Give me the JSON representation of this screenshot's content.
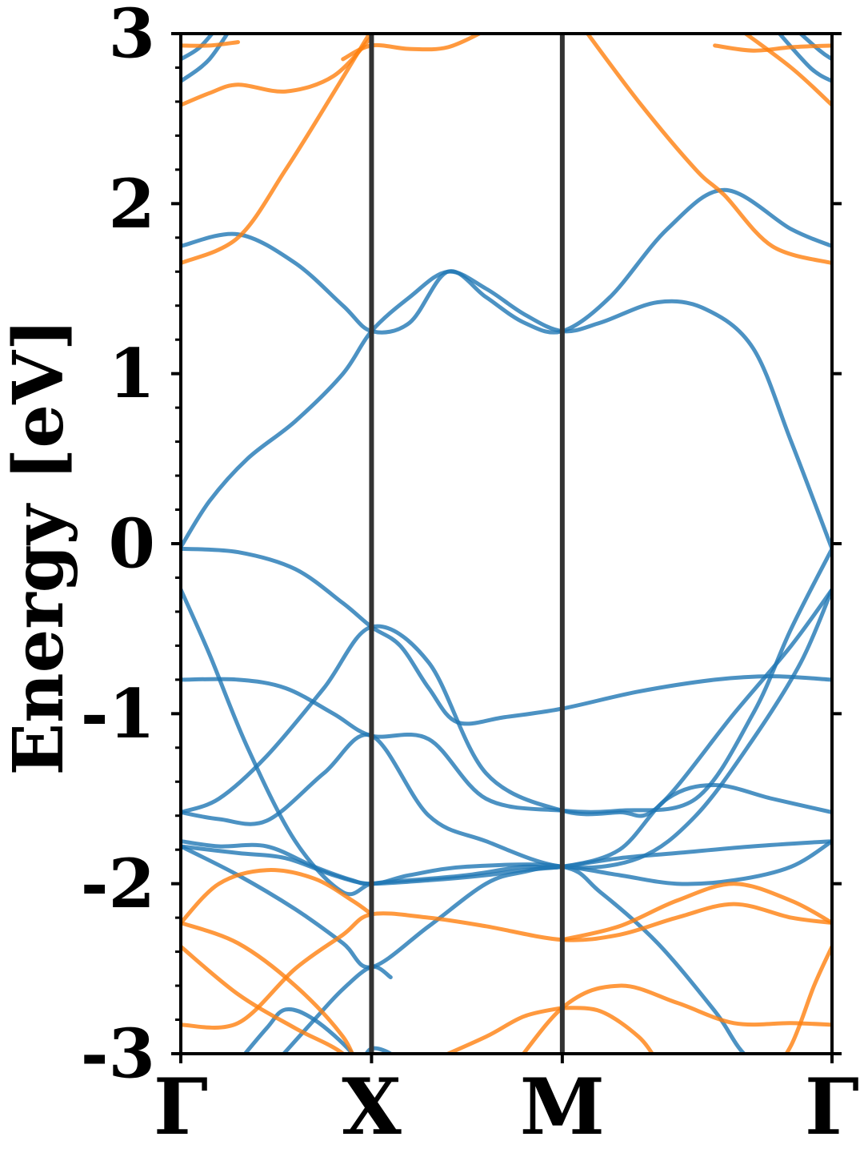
{
  "chart_data": {
    "type": "line",
    "ylabel": "Energy [eV]",
    "xlabel": "",
    "ylim": [
      -3,
      3
    ],
    "grid": false,
    "legend": "none",
    "kpath": [
      "Γ",
      "X",
      "M",
      "Γ"
    ],
    "kpath_positions": [
      0,
      1,
      2,
      3.414
    ],
    "xlim": [
      0,
      3.414
    ],
    "y_ticks": [
      -3,
      -2,
      -1,
      0,
      1,
      2,
      3
    ],
    "y_tick_labels": [
      "-3",
      "-2",
      "-1",
      "0",
      "1",
      "2",
      "3"
    ],
    "minor_y_step": 0.2,
    "colors": {
      "blue_bands": "#1f77b4",
      "orange_bands": "#ff7f0e",
      "high_symmetry_line": "#333333",
      "axes": "#000000"
    },
    "series": [
      {
        "color_key": "blue_bands",
        "x": [
          0,
          0.15,
          0.35,
          0.6,
          0.85,
          1.0,
          1.2,
          1.4,
          1.6,
          1.8,
          2.0,
          2.2,
          2.5,
          2.75,
          3.0,
          3.2,
          3.414
        ],
        "y": [
          -0.02,
          0.25,
          0.5,
          0.72,
          1.0,
          1.25,
          1.45,
          1.6,
          1.5,
          1.35,
          1.25,
          1.3,
          1.42,
          1.38,
          1.15,
          0.6,
          -0.03
        ]
      },
      {
        "color_key": "blue_bands",
        "x": [
          0,
          0.3,
          0.6,
          0.85,
          1.0,
          1.2,
          1.4,
          1.6,
          1.8,
          2.0,
          2.25,
          2.55,
          2.85,
          3.2,
          3.414
        ],
        "y": [
          1.75,
          1.82,
          1.65,
          1.4,
          1.25,
          1.3,
          1.6,
          1.45,
          1.3,
          1.25,
          1.45,
          1.85,
          2.08,
          1.85,
          1.75
        ]
      },
      {
        "color_key": "blue_bands",
        "x": [
          0,
          0.3,
          0.6,
          0.85,
          1.0,
          1.15,
          1.3,
          1.45,
          1.7,
          2.0,
          2.4,
          2.8,
          3.1,
          3.414
        ],
        "y": [
          -0.03,
          -0.05,
          -0.15,
          -0.35,
          -0.49,
          -0.6,
          -0.85,
          -1.05,
          -1.02,
          -0.97,
          -0.87,
          -0.8,
          -0.78,
          -0.8
        ]
      },
      {
        "color_key": "blue_bands",
        "x": [
          0,
          0.3,
          0.55,
          0.8,
          1.0,
          1.3,
          1.6,
          2.0,
          2.3,
          2.7,
          3.0,
          3.2,
          3.414
        ],
        "y": [
          -0.8,
          -0.8,
          -0.85,
          -1.0,
          -1.13,
          -1.15,
          -1.5,
          -1.57,
          -1.57,
          -1.5,
          -1.0,
          -0.5,
          -0.03
        ]
      },
      {
        "color_key": "blue_bands",
        "x": [
          0,
          0.2,
          0.45,
          0.75,
          1.0,
          1.3,
          1.6,
          2.0,
          2.3,
          2.5,
          2.9,
          3.2,
          3.414
        ],
        "y": [
          -1.58,
          -1.5,
          -1.25,
          -0.85,
          -0.49,
          -0.7,
          -1.35,
          -1.57,
          -1.58,
          -1.55,
          -1.0,
          -0.6,
          -0.27
        ]
      },
      {
        "color_key": "blue_bands",
        "x": [
          0,
          0.2,
          0.45,
          0.75,
          1.0,
          1.3,
          1.6,
          2.0,
          2.4,
          2.7,
          3.0,
          3.25,
          3.414
        ],
        "y": [
          -1.58,
          -1.62,
          -1.63,
          -1.35,
          -1.13,
          -1.6,
          -1.75,
          -1.9,
          -1.85,
          -1.6,
          -1.15,
          -0.7,
          -0.27
        ]
      },
      {
        "color_key": "blue_bands",
        "x": [
          0,
          0.15,
          0.35,
          0.6,
          0.85,
          1.0,
          1.2,
          1.5,
          1.8,
          2.0,
          2.3,
          2.55,
          2.8,
          3.1,
          3.414
        ],
        "y": [
          -0.27,
          -0.65,
          -1.2,
          -1.75,
          -2.05,
          -2.0,
          -1.98,
          -1.95,
          -1.9,
          -1.9,
          -1.8,
          -1.5,
          -1.42,
          -1.5,
          -1.58
        ]
      },
      {
        "color_key": "blue_bands",
        "x": [
          0,
          0.2,
          0.45,
          0.7,
          0.9,
          1.0,
          1.3,
          1.6,
          1.8,
          2.0,
          2.3,
          2.6,
          3.0,
          3.414
        ],
        "y": [
          -1.75,
          -1.78,
          -1.78,
          -1.9,
          -1.98,
          -2.0,
          -1.98,
          -1.95,
          -1.92,
          -1.9,
          -1.85,
          -1.82,
          -1.78,
          -1.75
        ]
      },
      {
        "color_key": "blue_bands",
        "x": [
          0,
          0.3,
          0.6,
          0.85,
          1.0,
          1.3,
          1.6,
          1.8,
          2.0,
          2.3,
          2.6,
          2.9,
          3.2,
          3.414
        ],
        "y": [
          -1.78,
          -1.95,
          -2.15,
          -2.35,
          -2.49,
          -2.25,
          -2.0,
          -1.93,
          -1.9,
          -1.95,
          -2.0,
          -1.98,
          -1.9,
          -1.75
        ]
      },
      {
        "color_key": "blue_bands",
        "x": [
          0,
          0.3,
          0.55,
          0.8,
          1.0,
          1.2,
          1.5,
          2.0,
          2.2,
          2.5,
          2.8,
          3.0,
          3.414
        ],
        "y": [
          -1.78,
          -1.82,
          -1.85,
          -1.95,
          -2.0,
          -1.95,
          -1.9,
          -1.9,
          -2.05,
          -2.35,
          -2.75,
          -3.05,
          -3.3
        ]
      },
      {
        "color_key": "blue_bands",
        "x": [
          0.3,
          0.45,
          0.55,
          0.7,
          0.9,
          1.0,
          1.15
        ],
        "y": [
          -3.05,
          -2.85,
          -2.74,
          -2.8,
          -3.0,
          -3.2,
          -3.3
        ]
      },
      {
        "color_key": "blue_bands",
        "x": [
          0.5,
          0.7,
          0.85,
          1.0,
          1.1
        ],
        "y": [
          -3.05,
          -2.8,
          -2.62,
          -2.49,
          -2.55
        ]
      },
      {
        "color_key": "blue_bands",
        "x": [
          0.95,
          1.0,
          1.1,
          1.2
        ],
        "y": [
          -3.05,
          -2.97,
          -3.0,
          -3.1
        ]
      },
      {
        "color_key": "blue_bands",
        "x": [
          0,
          0.15,
          0.3
        ],
        "y": [
          2.72,
          2.85,
          3.1
        ]
      },
      {
        "color_key": "blue_bands",
        "x": [
          0,
          0.1,
          0.2
        ],
        "y": [
          2.85,
          2.92,
          3.05
        ]
      },
      {
        "color_key": "blue_bands",
        "x": [
          3.1,
          3.3,
          3.414
        ],
        "y": [
          3.05,
          2.8,
          2.72
        ]
      },
      {
        "color_key": "blue_bands",
        "x": [
          3.2,
          3.35,
          3.414
        ],
        "y": [
          3.05,
          2.9,
          2.85
        ]
      },
      {
        "color_key": "orange_bands",
        "x": [
          0,
          0.3,
          0.55,
          0.8,
          1.0
        ],
        "y": [
          1.65,
          1.8,
          2.2,
          2.65,
          3.02
        ]
      },
      {
        "color_key": "orange_bands",
        "x": [
          0,
          0.15,
          0.3,
          0.55,
          0.8,
          1.0
        ],
        "y": [
          2.58,
          2.65,
          2.7,
          2.66,
          2.75,
          2.98
        ]
      },
      {
        "color_key": "orange_bands",
        "x": [
          0.85,
          1.0,
          1.2,
          1.4,
          1.6
        ],
        "y": [
          2.85,
          2.93,
          2.91,
          2.92,
          3.02
        ]
      },
      {
        "color_key": "orange_bands",
        "x": [
          0,
          0.15,
          0.3
        ],
        "y": [
          2.93,
          2.93,
          2.95
        ]
      },
      {
        "color_key": "orange_bands",
        "x": [
          2.1,
          2.4,
          2.7,
          2.85,
          3.1,
          3.414
        ],
        "y": [
          3.05,
          2.6,
          2.2,
          2.05,
          1.75,
          1.65
        ]
      },
      {
        "color_key": "orange_bands",
        "x": [
          2.8,
          3.0,
          3.2,
          3.414
        ],
        "y": [
          2.93,
          2.9,
          2.92,
          2.93
        ]
      },
      {
        "color_key": "orange_bands",
        "x": [
          2.9,
          3.2,
          3.414
        ],
        "y": [
          3.05,
          2.8,
          2.58
        ]
      },
      {
        "color_key": "orange_bands",
        "x": [
          0,
          0.2,
          0.45,
          0.7,
          0.9,
          1.0
        ],
        "y": [
          -2.23,
          -2.0,
          -1.92,
          -1.97,
          -2.1,
          -2.18
        ]
      },
      {
        "color_key": "orange_bands",
        "x": [
          0,
          0.3,
          0.6,
          0.85,
          1.0,
          1.3,
          1.6,
          2.0,
          2.3,
          2.6,
          2.9,
          3.2,
          3.414
        ],
        "y": [
          -2.23,
          -2.35,
          -2.6,
          -2.9,
          -3.2,
          -3.3,
          -3.25,
          -2.73,
          -2.6,
          -2.7,
          -2.82,
          -2.82,
          -2.83
        ]
      },
      {
        "color_key": "orange_bands",
        "x": [
          0,
          0.3,
          0.6,
          0.85,
          1.0,
          1.3,
          1.6,
          2.0,
          2.3,
          2.6,
          2.9,
          3.2,
          3.414
        ],
        "y": [
          -2.83,
          -2.82,
          -2.5,
          -2.3,
          -2.18,
          -2.2,
          -2.25,
          -2.33,
          -2.3,
          -2.2,
          -2.12,
          -2.2,
          -2.23
        ]
      },
      {
        "color_key": "orange_bands",
        "x": [
          0,
          0.3,
          0.6,
          0.85,
          1.0
        ],
        "y": [
          -2.37,
          -2.65,
          -2.85,
          -3.0,
          -3.2
        ]
      },
      {
        "color_key": "orange_bands",
        "x": [
          1.3,
          1.6,
          1.8,
          2.0
        ],
        "y": [
          -3.05,
          -2.9,
          -2.78,
          -2.73
        ]
      },
      {
        "color_key": "orange_bands",
        "x": [
          2.0,
          2.2,
          2.4,
          2.5
        ],
        "y": [
          -2.73,
          -2.75,
          -2.9,
          -3.05
        ]
      },
      {
        "color_key": "orange_bands",
        "x": [
          2.0,
          2.3,
          2.6,
          2.9,
          3.2,
          3.414
        ],
        "y": [
          -2.33,
          -2.25,
          -2.1,
          -2.0,
          -2.1,
          -2.23
        ]
      },
      {
        "color_key": "orange_bands",
        "x": [
          3.05,
          3.2,
          3.32,
          3.414
        ],
        "y": [
          -3.2,
          -2.95,
          -2.6,
          -2.37
        ]
      }
    ]
  }
}
